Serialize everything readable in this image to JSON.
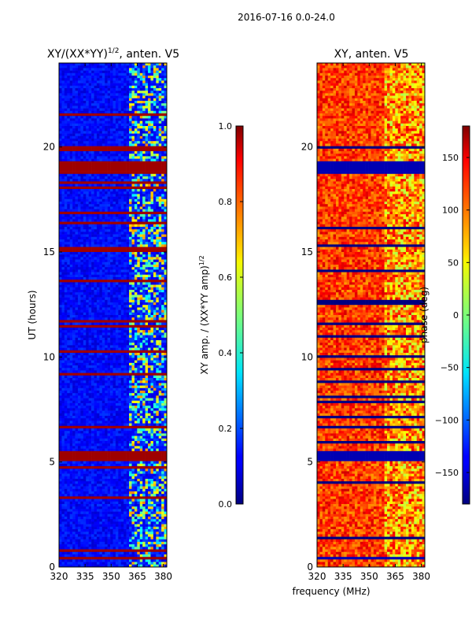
{
  "figure": {
    "suptitle": "2016-07-16 0.0-24.0",
    "shared_xlabel": "frequency (MHz)"
  },
  "chart_data": [
    {
      "type": "heatmap",
      "title_main": "XY/(XX*YY)",
      "title_sup": "1/2",
      "title_rest": ", anten. V5",
      "xlabel": "frequency (MHz)",
      "ylabel": "UT (hours)",
      "xlim": [
        320,
        382
      ],
      "ylim": [
        0,
        24
      ],
      "xticks": [
        320,
        335,
        350,
        365,
        380
      ],
      "yticks": [
        0,
        5,
        10,
        15,
        20
      ],
      "colorbar": {
        "label_main": "XY amp. / (XX*YY amp)",
        "label_sup": "1/2",
        "range": [
          0.0,
          1.0
        ],
        "ticks": [
          0.0,
          0.2,
          0.4,
          0.6,
          0.8,
          1.0
        ],
        "tick_labels": [
          "0.0",
          "0.2",
          "0.4",
          "0.6",
          "0.8",
          "1.0"
        ],
        "colormap": "jet"
      },
      "saturated_time_bands_hours": [
        [
          0.3,
          0.5
        ],
        [
          5.1,
          5.5
        ],
        [
          15.0,
          15.2
        ],
        [
          18.7,
          19.3
        ],
        [
          19.8,
          20.0
        ]
      ],
      "bright_freq_band_MHz": [
        360,
        382
      ],
      "note": "amplitude ratio mostly low (~0.1-0.2) below 360 MHz; bright speckled columns above 360 MHz"
    },
    {
      "type": "heatmap",
      "title": "XY, anten. V5",
      "xlabel": "frequency (MHz)",
      "ylabel": "",
      "xlim": [
        320,
        382
      ],
      "ylim": [
        0,
        24
      ],
      "xticks": [
        320,
        335,
        350,
        365,
        380
      ],
      "yticks": [
        0,
        5,
        10,
        15,
        20
      ],
      "colorbar": {
        "label": "phase (deg)",
        "range": [
          -180,
          180
        ],
        "ticks": [
          -150,
          -100,
          -50,
          0,
          50,
          100,
          150
        ],
        "tick_labels": [
          "−150",
          "−100",
          "−50",
          "0",
          "50",
          "100",
          "150"
        ],
        "colormap": "jet"
      },
      "flagged_time_bands_hours": [
        [
          0.3,
          0.5
        ],
        [
          5.1,
          5.5
        ],
        [
          18.7,
          19.3
        ]
      ],
      "note": "phase mostly +60 to +130 deg with horizontal dark flagged rows"
    }
  ]
}
